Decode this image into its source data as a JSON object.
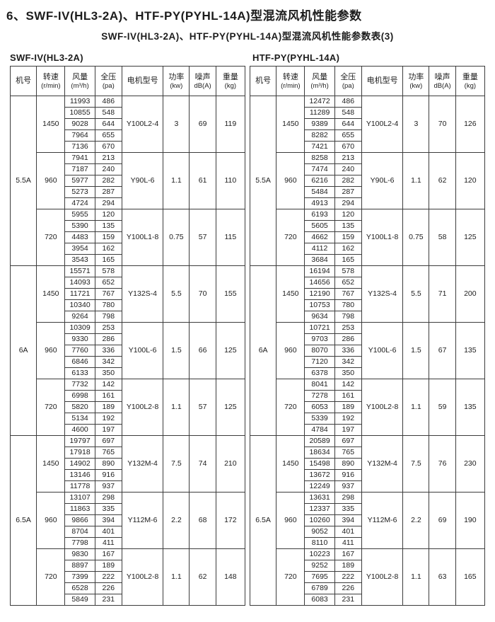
{
  "page": {
    "title": "6、SWF-IV(HL3-2A)、HTF-PY(PYHL-14A)型混流风机性能参数",
    "subtitle": "SWF-IV(HL3-2A)、HTF-PY(PYHL-14A)型混流风机性能参数表(3)"
  },
  "headers": [
    {
      "line1": "机号",
      "line2": ""
    },
    {
      "line1": "转速",
      "line2": "(r/min)"
    },
    {
      "line1": "风量",
      "line2": "(m³/h)"
    },
    {
      "line1": "全压",
      "line2": "(pa)"
    },
    {
      "line1": "电机型号",
      "line2": ""
    },
    {
      "line1": "功率",
      "line2": "(kw)"
    },
    {
      "line1": "噪声",
      "line2": "dB(A)"
    },
    {
      "line1": "重量",
      "line2": "(kg)"
    }
  ],
  "tables": [
    {
      "label": "SWF-IV(HL3-2A)",
      "sections": [
        {
          "model": "5.5A",
          "speed_groups": [
            {
              "speed": "1450",
              "rows": [
                [
                  "11993",
                  "486"
                ],
                [
                  "10855",
                  "548"
                ],
                [
                  "9028",
                  "644"
                ],
                [
                  "7964",
                  "655"
                ],
                [
                  "7136",
                  "670"
                ]
              ],
              "motor": "Y100L2-4",
              "power": "3",
              "noise": "69",
              "weight": "119"
            },
            {
              "speed": "960",
              "rows": [
                [
                  "7941",
                  "213"
                ],
                [
                  "7187",
                  "240"
                ],
                [
                  "5977",
                  "282"
                ],
                [
                  "5273",
                  "287"
                ],
                [
                  "4724",
                  "294"
                ]
              ],
              "motor": "Y90L-6",
              "power": "1.1",
              "noise": "61",
              "weight": "110"
            },
            {
              "speed": "720",
              "rows": [
                [
                  "5955",
                  "120"
                ],
                [
                  "5390",
                  "135"
                ],
                [
                  "4483",
                  "159"
                ],
                [
                  "3954",
                  "162"
                ],
                [
                  "3543",
                  "165"
                ]
              ],
              "motor": "Y100L1-8",
              "power": "0.75",
              "noise": "57",
              "weight": "115"
            }
          ]
        },
        {
          "model": "6A",
          "speed_groups": [
            {
              "speed": "1450",
              "rows": [
                [
                  "15571",
                  "578"
                ],
                [
                  "14093",
                  "652"
                ],
                [
                  "11721",
                  "767"
                ],
                [
                  "10340",
                  "780"
                ],
                [
                  "9264",
                  "798"
                ]
              ],
              "motor": "Y132S-4",
              "power": "5.5",
              "noise": "70",
              "weight": "155"
            },
            {
              "speed": "960",
              "rows": [
                [
                  "10309",
                  "253"
                ],
                [
                  "9330",
                  "286"
                ],
                [
                  "7760",
                  "336"
                ],
                [
                  "6846",
                  "342"
                ],
                [
                  "6133",
                  "350"
                ]
              ],
              "motor": "Y100L-6",
              "power": "1.5",
              "noise": "66",
              "weight": "125"
            },
            {
              "speed": "720",
              "rows": [
                [
                  "7732",
                  "142"
                ],
                [
                  "6998",
                  "161"
                ],
                [
                  "5820",
                  "189"
                ],
                [
                  "5134",
                  "192"
                ],
                [
                  "4600",
                  "197"
                ]
              ],
              "motor": "Y100L2-8",
              "power": "1.1",
              "noise": "57",
              "weight": "125"
            }
          ]
        },
        {
          "model": "6.5A",
          "speed_groups": [
            {
              "speed": "1450",
              "rows": [
                [
                  "19797",
                  "697"
                ],
                [
                  "17918",
                  "765"
                ],
                [
                  "14902",
                  "890"
                ],
                [
                  "13146",
                  "916"
                ],
                [
                  "11778",
                  "937"
                ]
              ],
              "motor": "Y132M-4",
              "power": "7.5",
              "noise": "74",
              "weight": "210"
            },
            {
              "speed": "960",
              "rows": [
                [
                  "13107",
                  "298"
                ],
                [
                  "11863",
                  "335"
                ],
                [
                  "9866",
                  "394"
                ],
                [
                  "8704",
                  "401"
                ],
                [
                  "7798",
                  "411"
                ]
              ],
              "motor": "Y112M-6",
              "power": "2.2",
              "noise": "68",
              "weight": "172"
            },
            {
              "speed": "720",
              "rows": [
                [
                  "9830",
                  "167"
                ],
                [
                  "8897",
                  "189"
                ],
                [
                  "7399",
                  "222"
                ],
                [
                  "6528",
                  "226"
                ],
                [
                  "5849",
                  "231"
                ]
              ],
              "motor": "Y100L2-8",
              "power": "1.1",
              "noise": "62",
              "weight": "148"
            }
          ]
        }
      ]
    },
    {
      "label": "HTF-PY(PYHL-14A)",
      "sections": [
        {
          "model": "5.5A",
          "speed_groups": [
            {
              "speed": "1450",
              "rows": [
                [
                  "12472",
                  "486"
                ],
                [
                  "11289",
                  "548"
                ],
                [
                  "9389",
                  "644"
                ],
                [
                  "8282",
                  "655"
                ],
                [
                  "7421",
                  "670"
                ]
              ],
              "motor": "Y100L2-4",
              "power": "3",
              "noise": "70",
              "weight": "126"
            },
            {
              "speed": "960",
              "rows": [
                [
                  "8258",
                  "213"
                ],
                [
                  "7474",
                  "240"
                ],
                [
                  "6216",
                  "282"
                ],
                [
                  "5484",
                  "287"
                ],
                [
                  "4913",
                  "294"
                ]
              ],
              "motor": "Y90L-6",
              "power": "1.1",
              "noise": "62",
              "weight": "120"
            },
            {
              "speed": "720",
              "rows": [
                [
                  "6193",
                  "120"
                ],
                [
                  "5605",
                  "135"
                ],
                [
                  "4662",
                  "159"
                ],
                [
                  "4112",
                  "162"
                ],
                [
                  "3684",
                  "165"
                ]
              ],
              "motor": "Y100L1-8",
              "power": "0.75",
              "noise": "58",
              "weight": "125"
            }
          ]
        },
        {
          "model": "6A",
          "speed_groups": [
            {
              "speed": "1450",
              "rows": [
                [
                  "16194",
                  "578"
                ],
                [
                  "14656",
                  "652"
                ],
                [
                  "12190",
                  "767"
                ],
                [
                  "10753",
                  "780"
                ],
                [
                  "9634",
                  "798"
                ]
              ],
              "motor": "Y132S-4",
              "power": "5.5",
              "noise": "71",
              "weight": "200"
            },
            {
              "speed": "960",
              "rows": [
                [
                  "10721",
                  "253"
                ],
                [
                  "9703",
                  "286"
                ],
                [
                  "8070",
                  "336"
                ],
                [
                  "7120",
                  "342"
                ],
                [
                  "6378",
                  "350"
                ]
              ],
              "motor": "Y100L-6",
              "power": "1.5",
              "noise": "67",
              "weight": "135"
            },
            {
              "speed": "720",
              "rows": [
                [
                  "8041",
                  "142"
                ],
                [
                  "7278",
                  "161"
                ],
                [
                  "6053",
                  "189"
                ],
                [
                  "5339",
                  "192"
                ],
                [
                  "4784",
                  "197"
                ]
              ],
              "motor": "Y100L2-8",
              "power": "1.1",
              "noise": "59",
              "weight": "135"
            }
          ]
        },
        {
          "model": "6.5A",
          "speed_groups": [
            {
              "speed": "1450",
              "rows": [
                [
                  "20589",
                  "697"
                ],
                [
                  "18634",
                  "765"
                ],
                [
                  "15498",
                  "890"
                ],
                [
                  "13672",
                  "916"
                ],
                [
                  "12249",
                  "937"
                ]
              ],
              "motor": "Y132M-4",
              "power": "7.5",
              "noise": "76",
              "weight": "230"
            },
            {
              "speed": "960",
              "rows": [
                [
                  "13631",
                  "298"
                ],
                [
                  "12337",
                  "335"
                ],
                [
                  "10260",
                  "394"
                ],
                [
                  "9052",
                  "401"
                ],
                [
                  "8110",
                  "411"
                ]
              ],
              "motor": "Y112M-6",
              "power": "2.2",
              "noise": "69",
              "weight": "190"
            },
            {
              "speed": "720",
              "rows": [
                [
                  "10223",
                  "167"
                ],
                [
                  "9252",
                  "189"
                ],
                [
                  "7695",
                  "222"
                ],
                [
                  "6789",
                  "226"
                ],
                [
                  "6083",
                  "231"
                ]
              ],
              "motor": "Y100L2-8",
              "power": "1.1",
              "noise": "63",
              "weight": "165"
            }
          ]
        }
      ]
    }
  ]
}
